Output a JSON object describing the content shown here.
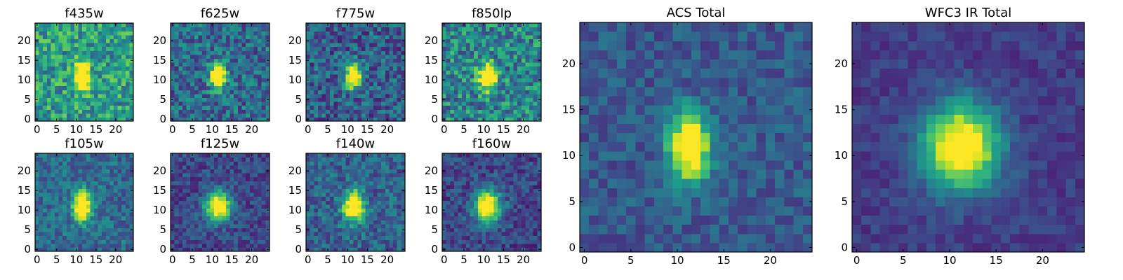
{
  "figure": {
    "type": "image-grid",
    "colormap": "viridis"
  },
  "chart_data": [
    {
      "type": "heatmap",
      "title": "f435w",
      "xlim": [
        0,
        24
      ],
      "ylim": [
        0,
        24
      ],
      "xticks": [
        "0",
        "5",
        "10",
        "15",
        "20"
      ],
      "yticks": [
        "0",
        "5",
        "10",
        "15",
        "20"
      ],
      "source": {
        "center": [
          11.5,
          11
        ],
        "sigma": [
          1.2,
          2.5
        ],
        "peak": 1.0
      },
      "background": 0.55,
      "noise": 0.24,
      "seed": 11
    },
    {
      "type": "heatmap",
      "title": "f625w",
      "xlim": [
        0,
        24
      ],
      "ylim": [
        0,
        24
      ],
      "xticks": [
        "0",
        "5",
        "10",
        "15",
        "20"
      ],
      "yticks": [
        "0",
        "5",
        "10",
        "15",
        "20"
      ],
      "source": {
        "center": [
          11.5,
          11
        ],
        "sigma": [
          1.4,
          2.3
        ],
        "peak": 1.0
      },
      "background": 0.35,
      "noise": 0.22,
      "seed": 23
    },
    {
      "type": "heatmap",
      "title": "f775w",
      "xlim": [
        0,
        24
      ],
      "ylim": [
        0,
        24
      ],
      "xticks": [
        "0",
        "5",
        "10",
        "15",
        "20"
      ],
      "yticks": [
        "0",
        "5",
        "10",
        "15",
        "20"
      ],
      "source": {
        "center": [
          11.5,
          11
        ],
        "sigma": [
          1.4,
          2.2
        ],
        "peak": 1.0
      },
      "background": 0.3,
      "noise": 0.22,
      "seed": 37
    },
    {
      "type": "heatmap",
      "title": "f850lp",
      "xlim": [
        0,
        24
      ],
      "ylim": [
        0,
        24
      ],
      "xticks": [
        "0",
        "5",
        "10",
        "15",
        "20"
      ],
      "yticks": [
        "0",
        "5",
        "10",
        "15",
        "20"
      ],
      "source": {
        "center": [
          11.0,
          11
        ],
        "sigma": [
          1.5,
          2.3
        ],
        "peak": 1.0
      },
      "background": 0.45,
      "noise": 0.26,
      "seed": 41
    },
    {
      "type": "heatmap",
      "title": "f105w",
      "xlim": [
        0,
        24
      ],
      "ylim": [
        0,
        24
      ],
      "xticks": [
        "0",
        "5",
        "10",
        "15",
        "20"
      ],
      "yticks": [
        "0",
        "5",
        "10",
        "15",
        "20"
      ],
      "source": {
        "center": [
          11.5,
          11
        ],
        "sigma": [
          1.6,
          2.6
        ],
        "peak": 1.0
      },
      "background": 0.35,
      "noise": 0.16,
      "seed": 53
    },
    {
      "type": "heatmap",
      "title": "f125w",
      "xlim": [
        0,
        24
      ],
      "ylim": [
        0,
        24
      ],
      "xticks": [
        "0",
        "5",
        "10",
        "15",
        "20"
      ],
      "yticks": [
        "0",
        "5",
        "10",
        "15",
        "20"
      ],
      "source": {
        "center": [
          11.5,
          11
        ],
        "sigma": [
          2.2,
          2.6
        ],
        "peak": 1.0
      },
      "background": 0.22,
      "noise": 0.14,
      "seed": 67
    },
    {
      "type": "heatmap",
      "title": "f140w",
      "xlim": [
        0,
        24
      ],
      "ylim": [
        0,
        24
      ],
      "xticks": [
        "0",
        "5",
        "10",
        "15",
        "20"
      ],
      "yticks": [
        "0",
        "5",
        "10",
        "15",
        "20"
      ],
      "source": {
        "center": [
          11.5,
          11
        ],
        "sigma": [
          1.8,
          2.6
        ],
        "peak": 1.0
      },
      "background": 0.32,
      "noise": 0.18,
      "seed": 79
    },
    {
      "type": "heatmap",
      "title": "f160w",
      "xlim": [
        0,
        24
      ],
      "ylim": [
        0,
        24
      ],
      "xticks": [
        "0",
        "5",
        "10",
        "15",
        "20"
      ],
      "yticks": [
        "0",
        "5",
        "10",
        "15",
        "20"
      ],
      "source": {
        "center": [
          11.0,
          11
        ],
        "sigma": [
          2.3,
          2.8
        ],
        "peak": 1.0
      },
      "background": 0.22,
      "noise": 0.15,
      "seed": 83
    },
    {
      "type": "heatmap",
      "title": "ACS Total",
      "xlim": [
        0,
        24
      ],
      "ylim": [
        0,
        24
      ],
      "xticks": [
        "0",
        "5",
        "10",
        "15",
        "20"
      ],
      "yticks": [
        "0",
        "5",
        "10",
        "15",
        "20"
      ],
      "source": {
        "center": [
          11.3,
          11
        ],
        "sigma": [
          1.5,
          2.5
        ],
        "peak": 1.0
      },
      "background": 0.28,
      "noise": 0.12,
      "seed": 97
    },
    {
      "type": "heatmap",
      "title": "WFC3 IR Total",
      "xlim": [
        0,
        24
      ],
      "ylim": [
        0,
        24
      ],
      "xticks": [
        "0",
        "5",
        "10",
        "15",
        "20"
      ],
      "yticks": [
        "0",
        "5",
        "10",
        "15",
        "20"
      ],
      "source": {
        "center": [
          11.3,
          11
        ],
        "sigma": [
          2.8,
          3.2
        ],
        "peak": 1.0
      },
      "background": 0.18,
      "noise": 0.08,
      "seed": 101
    }
  ]
}
